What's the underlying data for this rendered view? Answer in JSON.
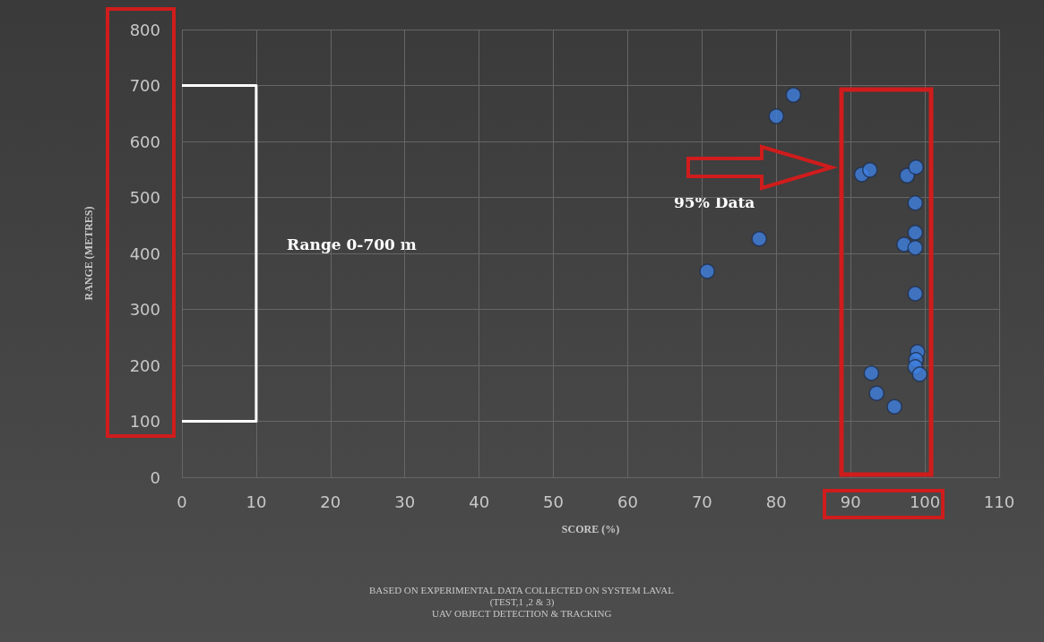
{
  "chart_data": {
    "type": "scatter",
    "xlabel": "SCORE (%)",
    "ylabel": "RANGE (METRES)",
    "xlim": [
      0,
      110
    ],
    "xticks": [
      0,
      10,
      20,
      30,
      40,
      50,
      60,
      70,
      80,
      90,
      100,
      110
    ],
    "ylim": [
      0,
      800
    ],
    "yticks": [
      0,
      100,
      200,
      300,
      400,
      500,
      600,
      700,
      800
    ],
    "grid": true,
    "marker": "circle",
    "series": [
      {
        "color": "#3f7fe0",
        "x": [
          82.3,
          80.0,
          77.7,
          70.7,
          91.5,
          92.6,
          97.6,
          98.8,
          98.7,
          98.7,
          97.2,
          98.7,
          98.7,
          99.0,
          98.8,
          98.7,
          99.3,
          92.8,
          93.5,
          95.9
        ],
        "values": [
          683,
          645,
          426,
          368,
          541,
          549,
          539,
          554,
          490,
          437,
          416,
          410,
          328,
          224,
          210,
          197,
          184,
          186,
          150,
          126
        ]
      },
      {
        "type": "line",
        "color": "#ffffff",
        "marker": "none",
        "x": [
          0,
          10,
          10,
          0
        ],
        "values": [
          700,
          700,
          100,
          100
        ]
      }
    ],
    "annotations": [
      "Range 0-700 m",
      "95% Data",
      "BASED ON EXPERIMENTAL DATA COLLECTED ON SYSTEM LAVAL",
      "(TEST,1 ,2 & 3)",
      "UAV OBJECT DETECTION & TRACKING"
    ]
  }
}
